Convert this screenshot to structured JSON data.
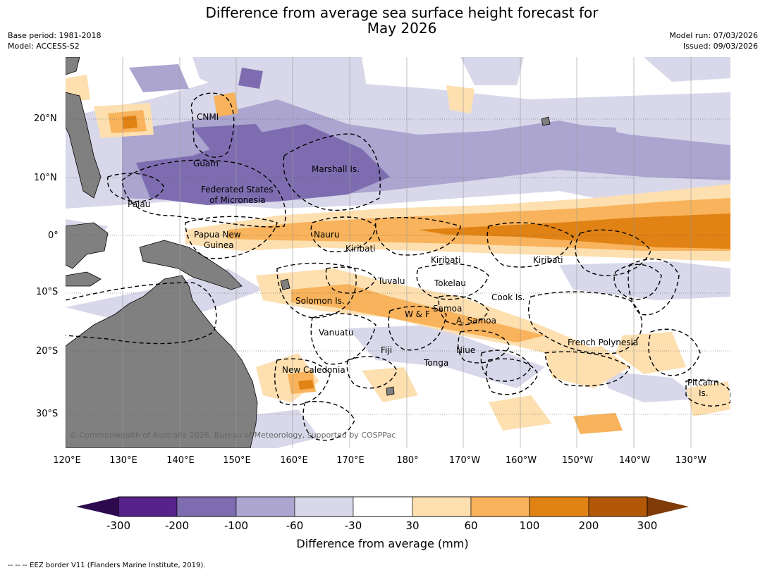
{
  "title_line1": "Difference from average sea surface height forecast for",
  "title_line2": "May 2026",
  "meta_left": {
    "line1": "Base period: 1981-2018",
    "line2": "Model: ACCESS-S2"
  },
  "meta_right": {
    "line1": "Model run: 07/03/2026",
    "line2": "Issued: 09/03/2026"
  },
  "lat_labels": [
    "20°N",
    "10°N",
    "0°",
    "10°S",
    "20°S",
    "30°S"
  ],
  "lon_labels": [
    "120°E",
    "130°E",
    "140°E",
    "150°E",
    "160°E",
    "170°E",
    "180°",
    "170°W",
    "160°W",
    "150°W",
    "140°W",
    "130°W"
  ],
  "places": {
    "cnmi": "CNMI",
    "guam": "Guam",
    "marshall": "Marshall Is.",
    "fsm1": "Federated States",
    "fsm2": "of Micronesia",
    "palau": "Palau",
    "png1": "Papua New",
    "png2": "Guinea",
    "nauru": "Nauru",
    "kiribati_w": "Kiribati",
    "kiribati_c": "Kiribati",
    "kiribati_e": "Kiribati",
    "tuvalu": "Tuvalu",
    "tokelau": "Tokelau",
    "solomon": "Solomon Is.",
    "samoa": "Samoa",
    "wf": "W & F",
    "asamoa": "A. Samoa",
    "cook": "Cook Is.",
    "vanuatu": "Vanuatu",
    "fiji": "Fiji",
    "niue": "Niue",
    "tonga": "Tonga",
    "frpoly": "French Polynesia",
    "newcal": "New Caledonia",
    "pitcairn1": "Pitcairn",
    "pitcairn2": "Is."
  },
  "credit": "© Commonwealth of Australia 2026, Bureau of Meteorology, supported by COSPPac",
  "colorbar": {
    "ticks": [
      "-300",
      "-200",
      "-100",
      "-60",
      "-30",
      "30",
      "60",
      "100",
      "200",
      "300"
    ],
    "colors": [
      "#2d0a4e",
      "#57238a",
      "#7d6db0",
      "#aba5d0",
      "#d8d8ea",
      "#ffffff",
      "#fddfb0",
      "#f8b35c",
      "#e08214",
      "#b35806",
      "#7f3b08"
    ],
    "label": "Difference from average (mm)"
  },
  "footer": "--  --  -- EEZ border V11 (Flanders Marine Institute, 2019)."
}
